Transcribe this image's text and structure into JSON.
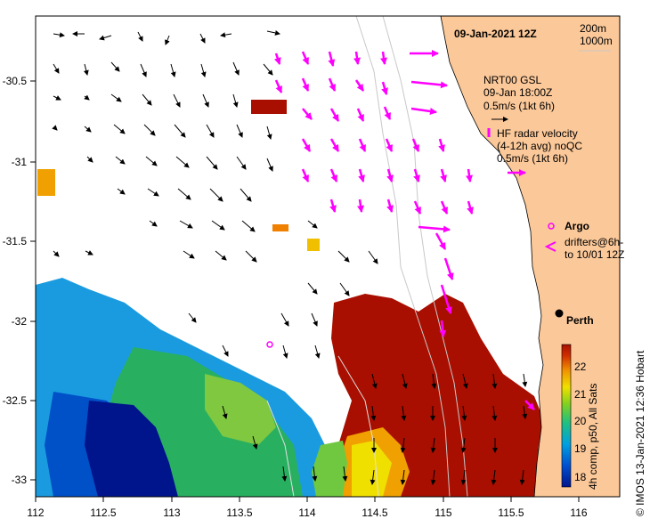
{
  "title": "09-Jan-2021 12Z",
  "bathymetry_legend": [
    "200m",
    "1000m"
  ],
  "x_ticks": [
    "112",
    "112.5",
    "113",
    "113.5",
    "114",
    "114.5",
    "115",
    "115.5",
    "116"
  ],
  "y_ticks": [
    "-30.5",
    "-31",
    "-31.5",
    "-32",
    "-32.5",
    "-33"
  ],
  "model_legend": {
    "line1": "NRT00 GSL",
    "line2": "09-Jan 18:00Z",
    "line3": "0.5m/s (1kt 6h)"
  },
  "radar_legend": {
    "line1": "HF radar velocity",
    "line2": "(4-12h avg) noQC",
    "line3": "0.5m/s (1kt 6h)"
  },
  "argo_label": "Argo",
  "drifters_label": {
    "line1": "drifters@6h-",
    "line2": "to 10/01 12Z"
  },
  "city_label": "Perth",
  "colorbar": {
    "ticks": [
      "22",
      "21",
      "20",
      "19",
      "18"
    ],
    "label": "4h comp, p50, All Sats"
  },
  "credit": "© IMOS 13-Jan-2021 12:36 Hobart",
  "colors": {
    "land": "#fbc899",
    "radar_arrow": "#ff00ff",
    "warm_sst": "#a80f00",
    "cool_sst": "#00148c"
  }
}
